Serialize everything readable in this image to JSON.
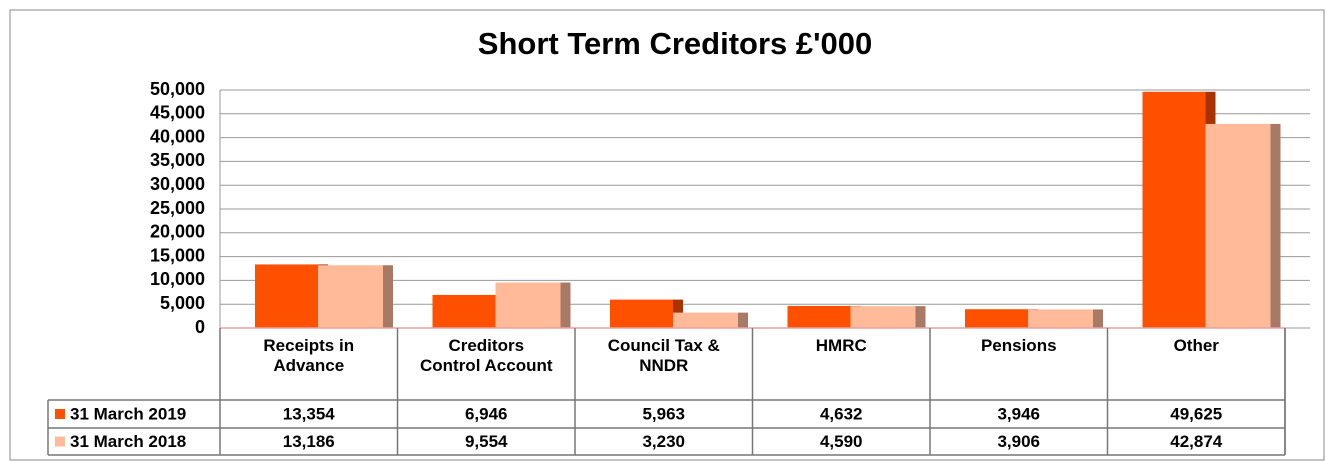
{
  "chart_data": {
    "type": "bar",
    "title": "Short Term Creditors £'000",
    "categories": [
      "Receipts in Advance",
      "Creditors Control Account",
      "Council Tax & NNDR",
      "HMRC",
      "Pensions",
      "Other"
    ],
    "series": [
      {
        "name": "31 March 2019",
        "color": "#ff5000",
        "values": [
          13354,
          6946,
          5963,
          4632,
          3946,
          49625
        ],
        "value_labels": [
          "13,354",
          "6,946",
          "5,963",
          "4,632",
          "3,946",
          "49,625"
        ]
      },
      {
        "name": "31 March 2018",
        "color": "#ffbb99",
        "values": [
          13186,
          9554,
          3230,
          4590,
          3906,
          42874
        ],
        "value_labels": [
          "13,186",
          "9,554",
          "3,230",
          "4,590",
          "3,906",
          "42,874"
        ]
      }
    ],
    "ylim": [
      0,
      50000
    ],
    "yticks": [
      0,
      {
        "value": 5000,
        "label": "5,000"
      },
      {
        "value": 10000,
        "label": "10,000"
      },
      {
        "value": 15000,
        "label": "15,000"
      },
      {
        "value": 20000,
        "label": "20,000"
      },
      {
        "value": 25000,
        "label": "25,000"
      },
      {
        "value": 30000,
        "label": "30,000"
      },
      {
        "value": 35000,
        "label": "35,000"
      },
      {
        "value": 40000,
        "label": "40,000"
      },
      {
        "value": 45000,
        "label": "45,000"
      },
      {
        "value": 50000,
        "label": "50,000"
      }
    ],
    "grid": true
  }
}
